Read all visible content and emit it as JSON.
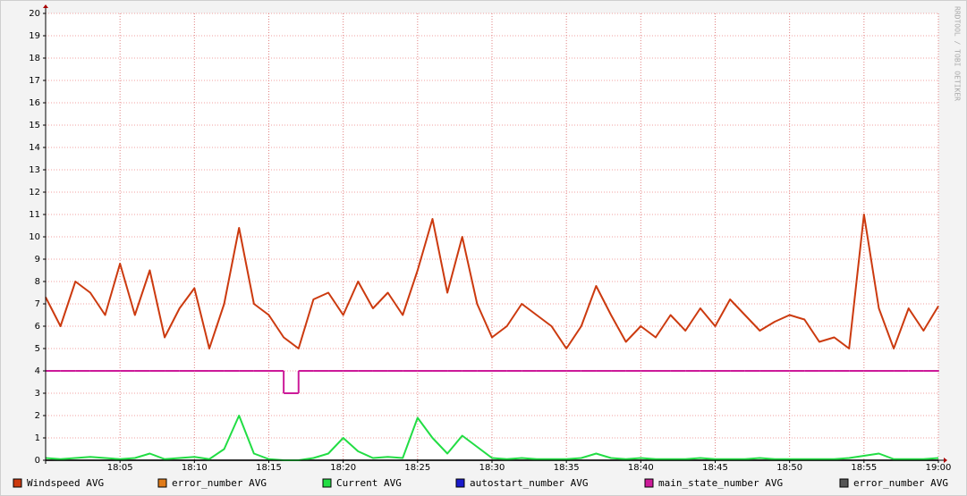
{
  "chart_data": {
    "type": "line",
    "watermark": "RRDTOOL / TOBI OETIKER",
    "x": [
      0,
      1,
      2,
      3,
      4,
      5,
      6,
      7,
      8,
      9,
      10,
      11,
      12,
      13,
      14,
      15,
      16,
      17,
      18,
      19,
      20,
      21,
      22,
      23,
      24,
      25,
      26,
      27,
      28,
      29,
      30,
      31,
      32,
      33,
      34,
      35,
      36,
      37,
      38,
      39,
      40,
      41,
      42,
      43,
      44,
      45,
      46,
      47,
      48,
      49,
      50,
      51,
      52,
      53,
      54,
      55,
      56,
      57,
      58,
      59,
      60
    ],
    "xlim": [
      0,
      60
    ],
    "xticks": [
      {
        "value": 5,
        "label": "18:05"
      },
      {
        "value": 10,
        "label": "18:10"
      },
      {
        "value": 15,
        "label": "18:15"
      },
      {
        "value": 20,
        "label": "18:20"
      },
      {
        "value": 25,
        "label": "18:25"
      },
      {
        "value": 30,
        "label": "18:30"
      },
      {
        "value": 35,
        "label": "18:35"
      },
      {
        "value": 40,
        "label": "18:40"
      },
      {
        "value": 45,
        "label": "18:45"
      },
      {
        "value": 50,
        "label": "18:50"
      },
      {
        "value": 55,
        "label": "18:55"
      },
      {
        "value": 60,
        "label": "19:00"
      }
    ],
    "ylim": [
      0,
      20
    ],
    "yticks": [
      0,
      1,
      2,
      3,
      4,
      5,
      6,
      7,
      8,
      9,
      10,
      11,
      12,
      13,
      14,
      15,
      16,
      17,
      18,
      19,
      20
    ],
    "grid": true,
    "legend": "bottom",
    "series": [
      {
        "name": "error_number AVG",
        "color": "#e07b1a",
        "values": [
          0,
          0,
          0,
          0,
          0,
          0,
          0,
          0,
          0,
          0,
          0,
          0,
          0,
          0,
          0,
          0,
          0,
          0,
          0,
          0,
          0,
          0,
          0,
          0,
          0,
          0,
          0,
          0,
          0,
          0,
          0,
          0,
          0,
          0,
          0,
          0,
          0,
          0,
          0,
          0,
          0,
          0,
          0,
          0,
          0,
          0,
          0,
          0,
          0,
          0,
          0,
          0,
          0,
          0,
          0,
          0,
          0,
          0,
          0,
          0,
          0
        ]
      },
      {
        "name": "autostart_number AVG",
        "color": "#1a1acc",
        "values": [
          0,
          0,
          0,
          0,
          0,
          0,
          0,
          0,
          0,
          0,
          0,
          0,
          0,
          0,
          0,
          0,
          0,
          0,
          0,
          0,
          0,
          0,
          0,
          0,
          0,
          0,
          0,
          0,
          0,
          0,
          0,
          0,
          0,
          0,
          0,
          0,
          0,
          0,
          0,
          0,
          0,
          0,
          0,
          0,
          0,
          0,
          0,
          0,
          0,
          0,
          0,
          0,
          0,
          0,
          0,
          0,
          0,
          0,
          0,
          0,
          0
        ]
      },
      {
        "name": "error_number AVG",
        "color": "#555555",
        "values": [
          0,
          0,
          0,
          0,
          0,
          0,
          0,
          0,
          0,
          0,
          0,
          0,
          0,
          0,
          0,
          0,
          0,
          0,
          0,
          0,
          0,
          0,
          0,
          0,
          0,
          0,
          0,
          0,
          0,
          0,
          0,
          0,
          0,
          0,
          0,
          0,
          0,
          0,
          0,
          0,
          0,
          0,
          0,
          0,
          0,
          0,
          0,
          0,
          0,
          0,
          0,
          0,
          0,
          0,
          0,
          0,
          0,
          0,
          0,
          0,
          0
        ]
      },
      {
        "name": "Windspeed AVG",
        "color": "#cc3a0f",
        "values": [
          7.3,
          6.0,
          8.0,
          7.5,
          6.5,
          8.8,
          6.5,
          8.5,
          5.5,
          6.8,
          7.7,
          5.0,
          7.0,
          10.4,
          7.0,
          6.5,
          5.5,
          5.0,
          7.2,
          7.5,
          6.5,
          8.0,
          6.8,
          7.5,
          6.5,
          8.5,
          10.8,
          7.5,
          10.0,
          7.0,
          5.5,
          6.0,
          7.0,
          6.5,
          6.0,
          5.0,
          6.0,
          7.8,
          6.5,
          5.3,
          6.0,
          5.5,
          6.5,
          5.8,
          6.8,
          6.0,
          7.2,
          6.5,
          5.8,
          6.2,
          6.5,
          6.3,
          5.3,
          5.5,
          5.0,
          11.0,
          6.8,
          5.0,
          6.8,
          5.8,
          6.9
        ]
      },
      {
        "name": "Current AVG",
        "color": "#22dd44",
        "values": [
          0.1,
          0.05,
          0.1,
          0.15,
          0.1,
          0.05,
          0.1,
          0.3,
          0.05,
          0.1,
          0.15,
          0.05,
          0.5,
          2.0,
          0.3,
          0.05,
          0,
          0,
          0.1,
          0.3,
          1.0,
          0.4,
          0.1,
          0.15,
          0.1,
          1.9,
          1.0,
          0.3,
          1.1,
          0.6,
          0.1,
          0.05,
          0.1,
          0.05,
          0.05,
          0.05,
          0.1,
          0.3,
          0.1,
          0.05,
          0.1,
          0.05,
          0.05,
          0.05,
          0.1,
          0.05,
          0.05,
          0.05,
          0.1,
          0.05,
          0.05,
          0.05,
          0.05,
          0.05,
          0.1,
          0.2,
          0.3,
          0.05,
          0.05,
          0.05,
          0.1
        ]
      },
      {
        "name": "main_state_number AVG",
        "color": "#cc1a99",
        "step": true,
        "values": [
          4,
          4,
          4,
          4,
          4,
          4,
          4,
          4,
          4,
          4,
          4,
          4,
          4,
          4,
          4,
          4,
          3,
          4,
          4,
          4,
          4,
          4,
          4,
          4,
          4,
          4,
          4,
          4,
          4,
          4,
          4,
          4,
          4,
          4,
          4,
          4,
          4,
          4,
          4,
          4,
          4,
          4,
          4,
          4,
          4,
          4,
          4,
          4,
          4,
          4,
          4,
          4,
          4,
          4,
          4,
          4,
          4,
          4,
          4,
          4,
          4
        ]
      }
    ],
    "legend_order": [
      3,
      0,
      4,
      1,
      5,
      2
    ]
  }
}
